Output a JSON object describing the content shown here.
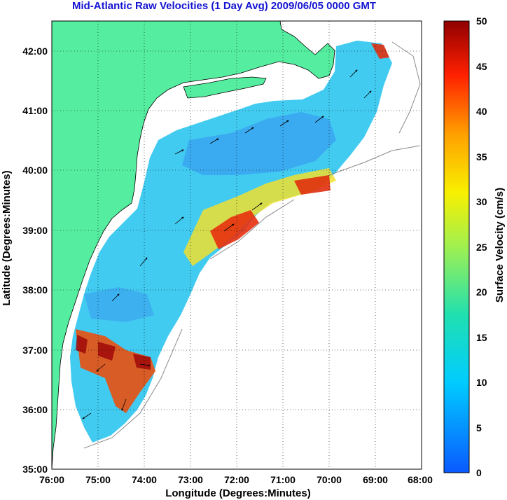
{
  "title": "Mid-Atlantic Raw Velocities (1 Day Avg) 2009/06/05 0000 GMT",
  "map": {
    "xlabel": "Longitude (Degrees:Minutes)",
    "ylabel": "Latitude (Degrees:Minutes)",
    "lon_range": [
      -76,
      -68
    ],
    "lat_range": [
      35,
      42.5
    ],
    "x_ticks": [
      "76:00",
      "75:00",
      "74:00",
      "73:00",
      "72:00",
      "71:00",
      "70:00",
      "69:00",
      "68:00"
    ],
    "y_ticks": [
      "35:00",
      "36:00",
      "37:00",
      "38:00",
      "39:00",
      "40:00",
      "41:00",
      "42:00"
    ],
    "grid": "dotted",
    "land_color": "#55eea0",
    "water_color": "#ffffff"
  },
  "colorbar": {
    "label": "Surface Velocity (cm/s)",
    "ticks": [
      "0",
      "5",
      "10",
      "15",
      "20",
      "25",
      "30",
      "35",
      "40",
      "45",
      "50"
    ],
    "range": [
      0,
      50
    ]
  }
}
